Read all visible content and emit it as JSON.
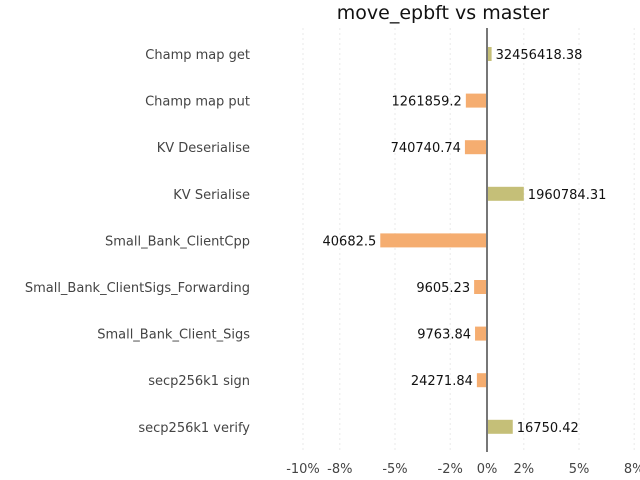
{
  "chart_data": {
    "type": "bar",
    "orientation": "horizontal",
    "title": "move_epbft vs master",
    "xlabel": "",
    "ylabel": "",
    "xlim": [
      -12.5,
      12
    ],
    "xticks": [
      -10,
      -8,
      -5,
      -2,
      0,
      2,
      5,
      8
    ],
    "xtick_labels": [
      "-10%",
      "-8%",
      "-5%",
      "-2%",
      "0%",
      "2%",
      "5%",
      "8%"
    ],
    "grid": "vertical",
    "legend": "none",
    "colors": {
      "positive": "#c5bf78",
      "negative": "#f5ad70",
      "zero_line": "#777777"
    },
    "categories": [
      "Champ map get",
      "Champ map put",
      "KV Deserialise",
      "KV Serialise",
      "Small_Bank_ClientCpp",
      "Small_Bank_ClientSigs_Forwarding",
      "Small_Bank_Client_Sigs",
      "secp256k1 sign",
      "secp256k1 verify"
    ],
    "values": [
      0.25,
      -1.15,
      -1.2,
      2.0,
      -5.8,
      -0.7,
      -0.65,
      -0.55,
      1.4
    ],
    "data_labels": [
      "32456418.38",
      "1261859.2",
      "740740.74",
      "1960784.31",
      "40682.5",
      "9605.23",
      "9763.84",
      "24271.84",
      "16750.42"
    ]
  }
}
